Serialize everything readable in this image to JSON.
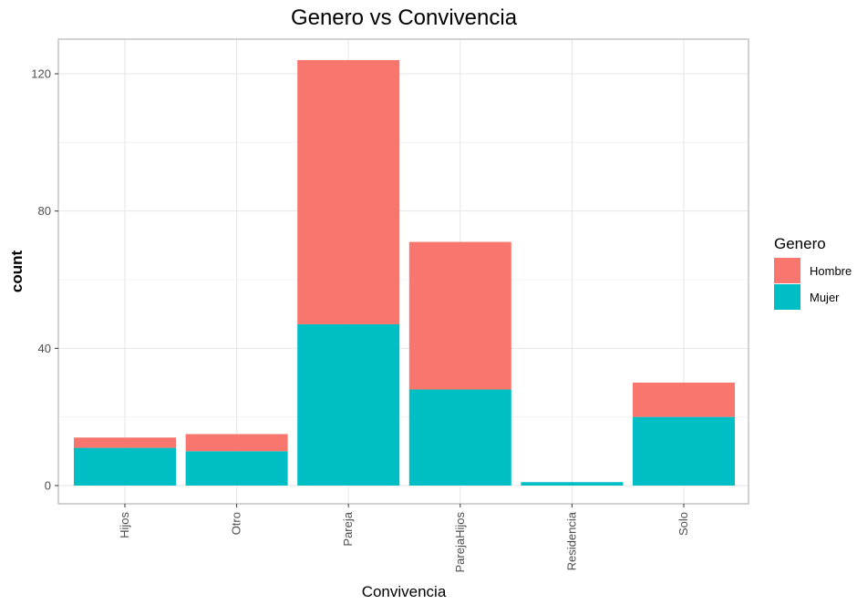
{
  "chart_data": {
    "type": "bar",
    "stacked": true,
    "title": "Genero vs Convivencia",
    "xlabel": "Convivencia",
    "ylabel": "count",
    "ylim": [
      0,
      130
    ],
    "yticks": [
      0,
      40,
      80,
      120
    ],
    "grid": true,
    "categories": [
      "Hijos",
      "Otro",
      "Pareja",
      "ParejaHijos",
      "Residencia",
      "Solo"
    ],
    "series": [
      {
        "name": "Mujer",
        "color": "#00BFC4",
        "values": [
          11,
          10,
          47,
          28,
          1,
          20
        ]
      },
      {
        "name": "Hombre",
        "color": "#F8766D",
        "values": [
          3,
          5,
          77,
          43,
          0,
          10
        ]
      }
    ],
    "legend": {
      "title": "Genero",
      "position": "right",
      "entries": [
        {
          "label": "Hombre",
          "color": "#F8766D"
        },
        {
          "label": "Mujer",
          "color": "#00BFC4"
        }
      ]
    }
  }
}
